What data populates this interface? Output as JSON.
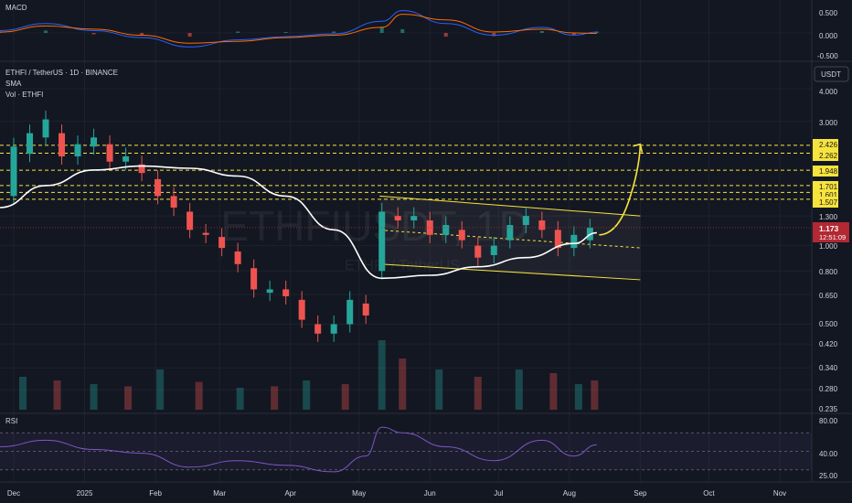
{
  "macd_pane": {
    "title": "MACD",
    "ticks": [
      "0.500",
      "0.000",
      "-0.500"
    ]
  },
  "price_pane": {
    "symbol_line": "ETHFI / TetherUS · 1D · BINANCE",
    "indicator_sma": "SMA",
    "indicator_vol": "Vol · ETHFI",
    "currency_button": "USDT",
    "watermark_main": "ETHFIUSDT, 1D",
    "watermark_sub": "ETHFI / TetherUS",
    "ticks": [
      "4.000",
      "3.000",
      "1.300",
      "1.000",
      "0.800",
      "0.650",
      "0.500",
      "0.420",
      "0.340",
      "0.280",
      "0.235"
    ],
    "level_tags": [
      "2.426",
      "2.262",
      "1.948",
      "1.701",
      "1.507"
    ],
    "hidden_level_tag": "1.601",
    "price_tag": "1.173",
    "countdown": "12:51:09"
  },
  "rsi_pane": {
    "title": "RSI",
    "ticks": [
      "80.00",
      "40.00",
      "25.00"
    ]
  },
  "time_axis": {
    "labels": [
      "Dec",
      "2025",
      "Feb",
      "Mar",
      "Apr",
      "May",
      "Jun",
      "Jul",
      "Aug",
      "Sep",
      "Oct",
      "Nov"
    ]
  },
  "colors": {
    "background": "#131722",
    "up": "#26a69a",
    "down": "#ef5350",
    "sma": "#ffffff",
    "levels": "#f7e33c",
    "channel": "#f7e33c",
    "rsi": "#7e57c2",
    "macd": "#2962ff",
    "signal": "#ff6d00",
    "price_tag": "#b22833"
  },
  "chart_data": [
    {
      "type": "candlestick",
      "title": "ETHFI / TetherUS · 1D · BINANCE",
      "scale": "log",
      "ylim": [
        0.235,
        4.3
      ],
      "x_range": [
        "2024-11-25",
        "2025-11-15"
      ],
      "candles": [
        [
          "2024-12-01",
          1.55,
          2.4
        ],
        [
          "2024-12-08",
          2.25,
          2.7
        ],
        [
          "2024-12-15",
          2.6,
          3.05
        ],
        [
          "2024-12-22",
          2.7,
          2.2
        ],
        [
          "2024-12-29",
          2.2,
          2.45
        ],
        [
          "2025-01-05",
          2.4,
          2.6
        ],
        [
          "2025-01-12",
          2.45,
          2.1
        ],
        [
          "2025-01-19",
          2.1,
          2.2
        ],
        [
          "2025-01-26",
          2.05,
          1.9
        ],
        [
          "2025-02-02",
          1.8,
          1.55
        ],
        [
          "2025-02-09",
          1.55,
          1.4
        ],
        [
          "2025-02-16",
          1.35,
          1.15
        ],
        [
          "2025-02-23",
          1.12,
          1.1
        ],
        [
          "2025-03-02",
          1.08,
          0.98
        ],
        [
          "2025-03-09",
          0.95,
          0.85
        ],
        [
          "2025-03-16",
          0.82,
          0.68
        ],
        [
          "2025-03-23",
          0.66,
          0.68
        ],
        [
          "2025-03-30",
          0.68,
          0.64
        ],
        [
          "2025-04-06",
          0.62,
          0.52
        ],
        [
          "2025-04-13",
          0.5,
          0.46
        ],
        [
          "2025-04-20",
          0.46,
          0.5
        ],
        [
          "2025-04-27",
          0.5,
          0.62
        ],
        [
          "2025-05-04",
          0.6,
          0.54
        ],
        [
          "2025-05-11",
          0.8,
          1.35
        ],
        [
          "2025-05-18",
          1.3,
          1.25
        ],
        [
          "2025-05-25",
          1.25,
          1.3
        ],
        [
          "2025-06-01",
          1.25,
          1.1
        ],
        [
          "2025-06-08",
          1.1,
          1.2
        ],
        [
          "2025-06-15",
          1.15,
          1.05
        ],
        [
          "2025-06-22",
          1.0,
          0.9
        ],
        [
          "2025-06-29",
          0.92,
          1.0
        ],
        [
          "2025-07-06",
          1.05,
          1.2
        ],
        [
          "2025-07-13",
          1.2,
          1.3
        ],
        [
          "2025-07-20",
          1.25,
          1.15
        ],
        [
          "2025-07-27",
          1.15,
          0.98
        ],
        [
          "2025-08-03",
          0.98,
          1.1
        ],
        [
          "2025-08-10",
          1.05,
          1.173
        ]
      ],
      "sma": [
        [
          "2024-11-25",
          1.4
        ],
        [
          "2024-12-15",
          1.7
        ],
        [
          "2025-01-05",
          1.95
        ],
        [
          "2025-01-26",
          2.02
        ],
        [
          "2025-02-16",
          1.98
        ],
        [
          "2025-03-09",
          1.85
        ],
        [
          "2025-03-30",
          1.55
        ],
        [
          "2025-04-20",
          1.15
        ],
        [
          "2025-05-11",
          0.75
        ],
        [
          "2025-06-01",
          0.77
        ],
        [
          "2025-06-22",
          0.83
        ],
        [
          "2025-07-13",
          0.9
        ],
        [
          "2025-08-03",
          1.02
        ],
        [
          "2025-08-13",
          1.12
        ]
      ],
      "levels": [
        2.426,
        2.262,
        1.948,
        1.701,
        1.601,
        1.507
      ],
      "channel": {
        "upper": [
          [
            "2025-05-10",
            1.55
          ],
          [
            "2025-09-01",
            1.3
          ]
        ],
        "lower": [
          [
            "2025-05-10",
            0.85
          ],
          [
            "2025-09-01",
            0.74
          ]
        ]
      },
      "projection": [
        [
          "2025-08-14",
          1.1
        ],
        [
          "2025-08-22",
          1.2
        ],
        [
          "2025-09-01",
          2.45
        ]
      ],
      "volume_max": 100,
      "volume": [
        [
          "2024-12-05",
          45
        ],
        [
          "2024-12-20",
          40
        ],
        [
          "2025-01-05",
          35
        ],
        [
          "2025-01-20",
          32
        ],
        [
          "2025-02-03",
          55
        ],
        [
          "2025-02-20",
          38
        ],
        [
          "2025-03-10",
          30
        ],
        [
          "2025-03-25",
          32
        ],
        [
          "2025-04-08",
          40
        ],
        [
          "2025-04-25",
          35
        ],
        [
          "2025-05-11",
          95
        ],
        [
          "2025-05-20",
          70
        ],
        [
          "2025-06-05",
          55
        ],
        [
          "2025-06-22",
          45
        ],
        [
          "2025-07-10",
          55
        ],
        [
          "2025-07-25",
          50
        ],
        [
          "2025-08-05",
          35
        ],
        [
          "2025-08-12",
          40
        ]
      ]
    },
    {
      "type": "line",
      "title": "MACD",
      "ylim": [
        -0.55,
        0.55
      ],
      "series": [
        {
          "name": "",
          "points": [
            [
              "2024-11-25",
              0.05
            ],
            [
              "2024-12-15",
              0.2
            ],
            [
              "2025-01-05",
              0.05
            ],
            [
              "2025-01-26",
              -0.1
            ],
            [
              "2025-02-16",
              -0.3
            ],
            [
              "2025-03-09",
              -0.15
            ],
            [
              "2025-03-30",
              -0.08
            ],
            [
              "2025-04-20",
              -0.02
            ],
            [
              "2025-05-11",
              0.25
            ],
            [
              "2025-05-20",
              0.48
            ],
            [
              "2025-06-08",
              0.2
            ],
            [
              "2025-06-29",
              -0.05
            ],
            [
              "2025-07-20",
              0.12
            ],
            [
              "2025-08-03",
              -0.05
            ],
            [
              "2025-08-13",
              0.02
            ]
          ]
        },
        {
          "name": "",
          "points": [
            [
              "2024-11-25",
              0.02
            ],
            [
              "2024-12-15",
              0.15
            ],
            [
              "2025-01-05",
              0.08
            ],
            [
              "2025-01-26",
              -0.05
            ],
            [
              "2025-02-16",
              -0.22
            ],
            [
              "2025-03-09",
              -0.18
            ],
            [
              "2025-03-30",
              -0.1
            ],
            [
              "2025-04-20",
              -0.05
            ],
            [
              "2025-05-11",
              0.12
            ],
            [
              "2025-05-20",
              0.4
            ],
            [
              "2025-06-08",
              0.28
            ],
            [
              "2025-06-29",
              0.02
            ],
            [
              "2025-07-20",
              0.08
            ],
            [
              "2025-08-03",
              0.0
            ],
            [
              "2025-08-13",
              -0.01
            ]
          ]
        }
      ]
    },
    {
      "type": "line",
      "title": "RSI",
      "ylim": [
        20,
        85
      ],
      "bands": [
        70,
        50,
        30
      ],
      "series": [
        {
          "name": "",
          "points": [
            [
              "2024-11-25",
              55
            ],
            [
              "2024-12-15",
              62
            ],
            [
              "2025-01-05",
              52
            ],
            [
              "2025-01-26",
              48
            ],
            [
              "2025-02-16",
              33
            ],
            [
              "2025-03-09",
              40
            ],
            [
              "2025-03-30",
              35
            ],
            [
              "2025-04-20",
              28
            ],
            [
              "2025-05-04",
              45
            ],
            [
              "2025-05-11",
              76
            ],
            [
              "2025-05-20",
              70
            ],
            [
              "2025-06-08",
              55
            ],
            [
              "2025-06-29",
              40
            ],
            [
              "2025-07-20",
              62
            ],
            [
              "2025-08-03",
              45
            ],
            [
              "2025-08-13",
              57
            ]
          ]
        }
      ]
    }
  ]
}
